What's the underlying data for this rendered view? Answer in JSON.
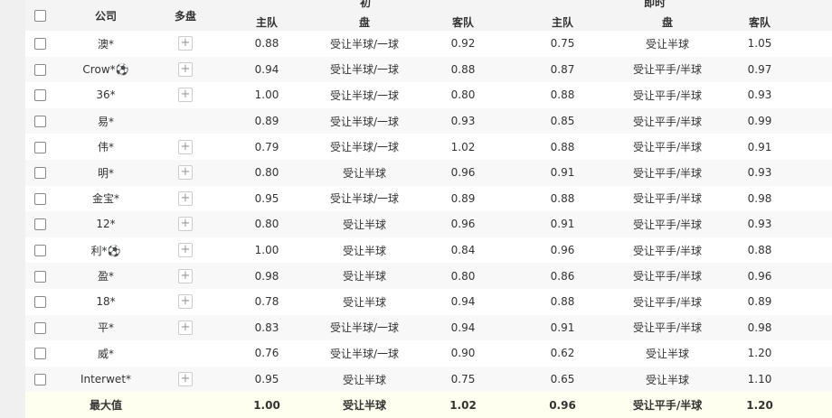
{
  "header": {
    "company": "公司",
    "multi": "多盘",
    "initial": "初",
    "live": "即时",
    "home": "主队",
    "line": "盘",
    "away": "客队"
  },
  "rows": [
    {
      "company": "澳*",
      "multi": true,
      "ih": "0.88",
      "il": "受让半球/一球",
      "ia": "0.92",
      "lh": "0.75",
      "ll": "受让半球",
      "la": "1.05"
    },
    {
      "company": "Crow*⚽",
      "multi": true,
      "ih": "0.94",
      "il": "受让半球/一球",
      "ia": "0.88",
      "lh": "0.87",
      "ll": "受让平手/半球",
      "la": "0.97"
    },
    {
      "company": "36*",
      "multi": true,
      "ih": "1.00",
      "il": "受让半球/一球",
      "ia": "0.80",
      "lh": "0.88",
      "ll": "受让平手/半球",
      "la": "0.93"
    },
    {
      "company": "易*",
      "multi": false,
      "ih": "0.89",
      "il": "受让半球/一球",
      "ia": "0.93",
      "lh": "0.85",
      "ll": "受让平手/半球",
      "la": "0.99"
    },
    {
      "company": "伟*",
      "multi": true,
      "ih": "0.79",
      "il": "受让半球/一球",
      "ia": "1.02",
      "lh": "0.88",
      "ll": "受让平手/半球",
      "la": "0.91"
    },
    {
      "company": "明*",
      "multi": true,
      "ih": "0.80",
      "il": "受让半球",
      "ia": "0.96",
      "lh": "0.91",
      "ll": "受让平手/半球",
      "la": "0.93"
    },
    {
      "company": "金宝*",
      "multi": true,
      "ih": "0.95",
      "il": "受让半球/一球",
      "ia": "0.89",
      "lh": "0.88",
      "ll": "受让平手/半球",
      "la": "0.98"
    },
    {
      "company": "12*",
      "multi": true,
      "ih": "0.80",
      "il": "受让半球",
      "ia": "0.96",
      "lh": "0.91",
      "ll": "受让平手/半球",
      "la": "0.93"
    },
    {
      "company": "利*⚽",
      "multi": true,
      "ih": "1.00",
      "il": "受让半球",
      "ia": "0.84",
      "lh": "0.96",
      "ll": "受让平手/半球",
      "la": "0.88"
    },
    {
      "company": "盈*",
      "multi": true,
      "ih": "0.98",
      "il": "受让半球",
      "ia": "0.80",
      "lh": "0.86",
      "ll": "受让平手/半球",
      "la": "0.96"
    },
    {
      "company": "18*",
      "multi": true,
      "ih": "0.78",
      "il": "受让半球",
      "ia": "0.94",
      "lh": "0.88",
      "ll": "受让平手/半球",
      "la": "0.89"
    },
    {
      "company": "平*",
      "multi": true,
      "ih": "0.83",
      "il": "受让半球/一球",
      "ia": "0.94",
      "lh": "0.91",
      "ll": "受让平手/半球",
      "la": "0.98"
    },
    {
      "company": "威*",
      "multi": false,
      "ih": "0.76",
      "il": "受让半球/一球",
      "ia": "0.90",
      "lh": "0.62",
      "ll": "受让半球",
      "la": "1.20"
    },
    {
      "company": "Interwet*",
      "multi": true,
      "ih": "0.95",
      "il": "受让半球",
      "ia": "0.75",
      "lh": "0.65",
      "ll": "受让半球",
      "la": "1.10"
    }
  ],
  "max": {
    "label": "最大值",
    "ih": "1.00",
    "il": "受让半球",
    "ia": "1.02",
    "lh": "0.96",
    "ll": "受让平手/半球",
    "la": "1.20"
  },
  "icons": {
    "plus": "+"
  }
}
